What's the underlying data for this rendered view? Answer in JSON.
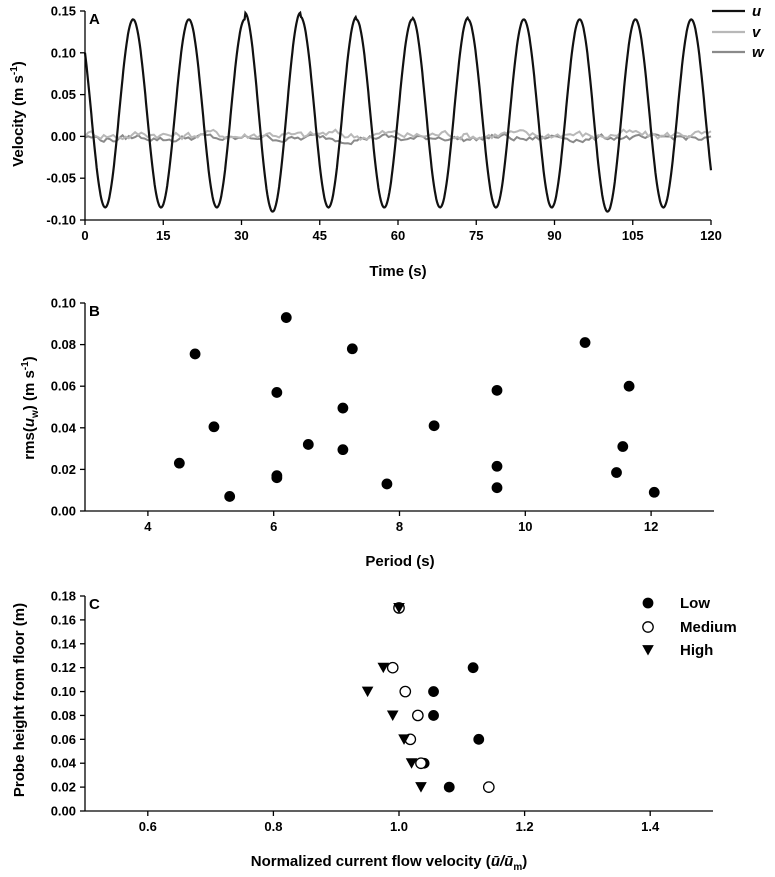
{
  "chart_data": [
    {
      "panel": "A",
      "type": "line",
      "xlabel": "Time (s)",
      "ylabel": "Velocity (m s-1)",
      "ylabel_parts": {
        "main": "Velocity (m s",
        "sup": "-1",
        "end": ")"
      },
      "xlim": [
        0,
        120
      ],
      "ylim": [
        -0.1,
        0.15
      ],
      "x_ticks": [
        0,
        15,
        30,
        45,
        60,
        75,
        90,
        105,
        120
      ],
      "x_tick_labels": [
        "0",
        "15",
        "30",
        "45",
        "60",
        "75",
        "90",
        "105",
        "120"
      ],
      "y_ticks": [
        -0.1,
        -0.05,
        0.0,
        0.05,
        0.1,
        0.15
      ],
      "y_tick_labels": [
        "-0.10",
        "-0.05",
        "0.00",
        "0.05",
        "0.10",
        "0.15"
      ],
      "grid": false,
      "legend_position": "top-right",
      "series": [
        {
          "name": "u",
          "color": "#111111",
          "wave": {
            "period_s": 10.7,
            "mean": 0.027,
            "amplitude": 0.113,
            "start_value": 0.1,
            "peaks_approx": [
              0.14,
              0.14,
              0.14,
              0.148,
              0.143,
              0.14,
              0.142,
              0.14,
              0.14,
              0.14,
              0.14
            ],
            "troughs_approx": [
              -0.085,
              -0.085,
              -0.085,
              -0.09,
              -0.085,
              -0.085,
              -0.085,
              -0.085,
              -0.085,
              -0.09,
              -0.085
            ]
          }
        },
        {
          "name": "v",
          "color": "#b8b8b8",
          "wave": {
            "mean": 0.002,
            "noise": 0.004
          }
        },
        {
          "name": "w",
          "color": "#8a8a8a",
          "wave": {
            "mean": -0.002,
            "noise": 0.003
          }
        }
      ]
    },
    {
      "panel": "B",
      "type": "scatter",
      "xlabel": "Period (s)",
      "ylabel": "rms(uw) (m s-1)",
      "ylabel_parts": {
        "pre": "rms(",
        "var": "u",
        "sub": "w",
        "mid": ") (m s",
        "sup": "-1",
        "end": ")"
      },
      "xlim": [
        3,
        13
      ],
      "ylim": [
        0,
        0.1
      ],
      "x_ticks": [
        4,
        6,
        8,
        10,
        12
      ],
      "x_tick_labels": [
        "4",
        "6",
        "8",
        "10",
        "12"
      ],
      "y_ticks": [
        0,
        0.02,
        0.04,
        0.06,
        0.08,
        0.1
      ],
      "y_tick_labels": [
        "0.00",
        "0.02",
        "0.04",
        "0.06",
        "0.08",
        "0.10"
      ],
      "grid": false,
      "points": [
        {
          "x": 4.5,
          "y": 0.023
        },
        {
          "x": 4.75,
          "y": 0.0755
        },
        {
          "x": 5.05,
          "y": 0.0405
        },
        {
          "x": 5.3,
          "y": 0.007
        },
        {
          "x": 6.05,
          "y": 0.057
        },
        {
          "x": 6.05,
          "y": 0.017
        },
        {
          "x": 6.05,
          "y": 0.016
        },
        {
          "x": 6.2,
          "y": 0.093
        },
        {
          "x": 6.55,
          "y": 0.032
        },
        {
          "x": 7.1,
          "y": 0.0295
        },
        {
          "x": 7.1,
          "y": 0.0495
        },
        {
          "x": 7.25,
          "y": 0.078
        },
        {
          "x": 7.8,
          "y": 0.013
        },
        {
          "x": 8.55,
          "y": 0.041
        },
        {
          "x": 9.55,
          "y": 0.058
        },
        {
          "x": 9.55,
          "y": 0.0215
        },
        {
          "x": 9.55,
          "y": 0.0112
        },
        {
          "x": 10.95,
          "y": 0.081
        },
        {
          "x": 11.45,
          "y": 0.0185
        },
        {
          "x": 11.55,
          "y": 0.031
        },
        {
          "x": 11.65,
          "y": 0.06
        },
        {
          "x": 12.05,
          "y": 0.009
        }
      ]
    },
    {
      "panel": "C",
      "type": "scatter",
      "xlabel": "Normalized current flow velocity (ū/ūm)",
      "xlabel_parts": {
        "main": "Normalized current flow velocity (",
        "num": "ū",
        "slash": "/",
        "den": "ū",
        "sub": "m",
        "end": ")"
      },
      "ylabel": "Probe height from floor (m)",
      "xlim": [
        0.5,
        1.5
      ],
      "ylim": [
        0,
        0.18
      ],
      "x_ticks": [
        0.6,
        0.8,
        1.0,
        1.2,
        1.4
      ],
      "x_tick_labels": [
        "0.6",
        "0.8",
        "1.0",
        "1.2",
        "1.4"
      ],
      "y_ticks": [
        0,
        0.02,
        0.04,
        0.06,
        0.08,
        0.1,
        0.12,
        0.14,
        0.16,
        0.18
      ],
      "y_tick_labels": [
        "0.00",
        "0.02",
        "0.04",
        "0.06",
        "0.08",
        "0.10",
        "0.12",
        "0.14",
        "0.16",
        "0.18"
      ],
      "grid": false,
      "legend_position": "top-right",
      "series": [
        {
          "name": "Low",
          "marker": "filled-circle",
          "points": [
            {
              "x": 1.0,
              "y": 0.17
            },
            {
              "x": 1.118,
              "y": 0.12
            },
            {
              "x": 1.055,
              "y": 0.1
            },
            {
              "x": 1.055,
              "y": 0.08
            },
            {
              "x": 1.127,
              "y": 0.06
            },
            {
              "x": 1.04,
              "y": 0.04
            },
            {
              "x": 1.08,
              "y": 0.02
            }
          ]
        },
        {
          "name": "Medium",
          "marker": "open-circle",
          "points": [
            {
              "x": 1.0,
              "y": 0.17
            },
            {
              "x": 0.99,
              "y": 0.12
            },
            {
              "x": 1.01,
              "y": 0.1
            },
            {
              "x": 1.03,
              "y": 0.08
            },
            {
              "x": 1.018,
              "y": 0.06
            },
            {
              "x": 1.035,
              "y": 0.04
            },
            {
              "x": 1.143,
              "y": 0.02
            }
          ]
        },
        {
          "name": "High",
          "marker": "filled-triangle-down",
          "points": [
            {
              "x": 1.0,
              "y": 0.17
            },
            {
              "x": 0.975,
              "y": 0.12
            },
            {
              "x": 0.95,
              "y": 0.1
            },
            {
              "x": 0.99,
              "y": 0.08
            },
            {
              "x": 1.008,
              "y": 0.06
            },
            {
              "x": 1.02,
              "y": 0.04
            },
            {
              "x": 1.035,
              "y": 0.02
            }
          ]
        }
      ]
    }
  ]
}
